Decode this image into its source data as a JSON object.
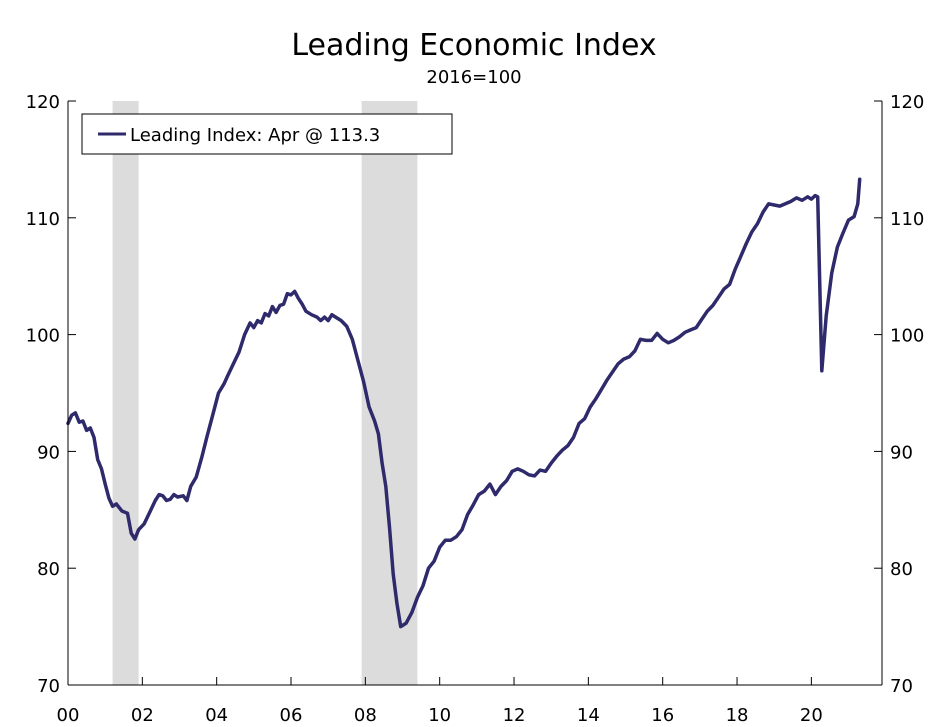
{
  "chart_data": {
    "type": "line",
    "title": "Leading Economic Index",
    "subtitle": "2016=100",
    "xlabel": "",
    "ylabel": "",
    "xlim": [
      2000.0,
      2021.9
    ],
    "ylim": [
      70,
      120
    ],
    "y_ticks": [
      70,
      80,
      90,
      100,
      110,
      120
    ],
    "x_tick_labels": [
      {
        "value": 2000,
        "label": "00"
      },
      {
        "value": 2002,
        "label": "02"
      },
      {
        "value": 2004,
        "label": "04"
      },
      {
        "value": 2006,
        "label": "06"
      },
      {
        "value": 2008,
        "label": "08"
      },
      {
        "value": 2010,
        "label": "10"
      },
      {
        "value": 2012,
        "label": "12"
      },
      {
        "value": 2014,
        "label": "14"
      },
      {
        "value": 2016,
        "label": "16"
      },
      {
        "value": 2018,
        "label": "18"
      },
      {
        "value": 2020,
        "label": "20"
      }
    ],
    "recessions": [
      {
        "start": 2001.2,
        "end": 2001.9
      },
      {
        "start": 2007.9,
        "end": 2009.4
      }
    ],
    "legend": {
      "position": "top-left",
      "entry": "Leading Index: Apr @ 113.3"
    },
    "grid": false,
    "series": [
      {
        "name": "Leading Index: Apr @ 113.3",
        "color": "#2e2a6b",
        "points": [
          [
            2000.0,
            92.4
          ],
          [
            2000.1,
            93.1
          ],
          [
            2000.2,
            93.3
          ],
          [
            2000.3,
            92.5
          ],
          [
            2000.4,
            92.6
          ],
          [
            2000.5,
            91.8
          ],
          [
            2000.6,
            92.0
          ],
          [
            2000.7,
            91.2
          ],
          [
            2000.8,
            89.3
          ],
          [
            2000.9,
            88.5
          ],
          [
            2001.0,
            87.2
          ],
          [
            2001.1,
            86.0
          ],
          [
            2001.2,
            85.3
          ],
          [
            2001.3,
            85.5
          ],
          [
            2001.45,
            84.9
          ],
          [
            2001.6,
            84.7
          ],
          [
            2001.7,
            83.0
          ],
          [
            2001.8,
            82.5
          ],
          [
            2001.9,
            83.3
          ],
          [
            2002.05,
            83.8
          ],
          [
            2002.2,
            84.8
          ],
          [
            2002.35,
            85.8
          ],
          [
            2002.45,
            86.3
          ],
          [
            2002.55,
            86.2
          ],
          [
            2002.65,
            85.8
          ],
          [
            2002.75,
            85.9
          ],
          [
            2002.85,
            86.3
          ],
          [
            2002.95,
            86.1
          ],
          [
            2003.1,
            86.2
          ],
          [
            2003.2,
            85.8
          ],
          [
            2003.3,
            87.0
          ],
          [
            2003.45,
            87.8
          ],
          [
            2003.6,
            89.5
          ],
          [
            2003.75,
            91.4
          ],
          [
            2003.9,
            93.2
          ],
          [
            2004.05,
            95.0
          ],
          [
            2004.2,
            95.8
          ],
          [
            2004.3,
            96.5
          ],
          [
            2004.45,
            97.5
          ],
          [
            2004.6,
            98.5
          ],
          [
            2004.75,
            100.0
          ],
          [
            2004.9,
            101.0
          ],
          [
            2005.0,
            100.6
          ],
          [
            2005.1,
            101.2
          ],
          [
            2005.2,
            101.0
          ],
          [
            2005.3,
            101.8
          ],
          [
            2005.4,
            101.6
          ],
          [
            2005.5,
            102.4
          ],
          [
            2005.6,
            101.9
          ],
          [
            2005.7,
            102.5
          ],
          [
            2005.8,
            102.6
          ],
          [
            2005.9,
            103.5
          ],
          [
            2006.0,
            103.4
          ],
          [
            2006.1,
            103.7
          ],
          [
            2006.2,
            103.1
          ],
          [
            2006.3,
            102.6
          ],
          [
            2006.4,
            102.0
          ],
          [
            2006.55,
            101.7
          ],
          [
            2006.7,
            101.5
          ],
          [
            2006.8,
            101.2
          ],
          [
            2006.9,
            101.5
          ],
          [
            2007.0,
            101.2
          ],
          [
            2007.1,
            101.7
          ],
          [
            2007.2,
            101.5
          ],
          [
            2007.35,
            101.2
          ],
          [
            2007.5,
            100.7
          ],
          [
            2007.65,
            99.6
          ],
          [
            2007.8,
            97.8
          ],
          [
            2007.95,
            96.0
          ],
          [
            2008.1,
            93.8
          ],
          [
            2008.25,
            92.6
          ],
          [
            2008.35,
            91.5
          ],
          [
            2008.45,
            89.0
          ],
          [
            2008.55,
            87.0
          ],
          [
            2008.65,
            83.5
          ],
          [
            2008.75,
            79.5
          ],
          [
            2008.85,
            77.0
          ],
          [
            2008.95,
            75.0
          ],
          [
            2009.1,
            75.3
          ],
          [
            2009.25,
            76.2
          ],
          [
            2009.4,
            77.5
          ],
          [
            2009.55,
            78.5
          ],
          [
            2009.7,
            80.0
          ],
          [
            2009.85,
            80.6
          ],
          [
            2010.0,
            81.8
          ],
          [
            2010.15,
            82.4
          ],
          [
            2010.3,
            82.4
          ],
          [
            2010.45,
            82.7
          ],
          [
            2010.6,
            83.3
          ],
          [
            2010.75,
            84.6
          ],
          [
            2010.9,
            85.4
          ],
          [
            2011.05,
            86.3
          ],
          [
            2011.2,
            86.6
          ],
          [
            2011.35,
            87.2
          ],
          [
            2011.5,
            86.3
          ],
          [
            2011.65,
            87.0
          ],
          [
            2011.8,
            87.5
          ],
          [
            2011.95,
            88.3
          ],
          [
            2012.1,
            88.5
          ],
          [
            2012.25,
            88.3
          ],
          [
            2012.4,
            88.0
          ],
          [
            2012.55,
            87.9
          ],
          [
            2012.7,
            88.4
          ],
          [
            2012.85,
            88.3
          ],
          [
            2013.0,
            89.0
          ],
          [
            2013.15,
            89.6
          ],
          [
            2013.3,
            90.1
          ],
          [
            2013.45,
            90.5
          ],
          [
            2013.6,
            91.2
          ],
          [
            2013.75,
            92.4
          ],
          [
            2013.9,
            92.8
          ],
          [
            2014.05,
            93.8
          ],
          [
            2014.2,
            94.5
          ],
          [
            2014.35,
            95.3
          ],
          [
            2014.5,
            96.1
          ],
          [
            2014.65,
            96.8
          ],
          [
            2014.8,
            97.5
          ],
          [
            2014.95,
            97.9
          ],
          [
            2015.1,
            98.1
          ],
          [
            2015.25,
            98.6
          ],
          [
            2015.4,
            99.6
          ],
          [
            2015.55,
            99.5
          ],
          [
            2015.7,
            99.5
          ],
          [
            2015.85,
            100.1
          ],
          [
            2016.0,
            99.6
          ],
          [
            2016.15,
            99.3
          ],
          [
            2016.3,
            99.5
          ],
          [
            2016.45,
            99.8
          ],
          [
            2016.6,
            100.2
          ],
          [
            2016.75,
            100.4
          ],
          [
            2016.9,
            100.6
          ],
          [
            2017.05,
            101.3
          ],
          [
            2017.2,
            102.0
          ],
          [
            2017.35,
            102.5
          ],
          [
            2017.5,
            103.2
          ],
          [
            2017.65,
            103.9
          ],
          [
            2017.8,
            104.3
          ],
          [
            2017.95,
            105.6
          ],
          [
            2018.1,
            106.7
          ],
          [
            2018.25,
            107.8
          ],
          [
            2018.4,
            108.8
          ],
          [
            2018.55,
            109.5
          ],
          [
            2018.7,
            110.5
          ],
          [
            2018.85,
            111.2
          ],
          [
            2019.0,
            111.1
          ],
          [
            2019.15,
            111.0
          ],
          [
            2019.3,
            111.2
          ],
          [
            2019.45,
            111.4
          ],
          [
            2019.6,
            111.7
          ],
          [
            2019.75,
            111.5
          ],
          [
            2019.9,
            111.8
          ],
          [
            2020.0,
            111.6
          ],
          [
            2020.1,
            111.9
          ],
          [
            2020.17,
            111.8
          ],
          [
            2020.28,
            96.9
          ],
          [
            2020.4,
            101.6
          ],
          [
            2020.55,
            105.3
          ],
          [
            2020.7,
            107.5
          ],
          [
            2020.85,
            108.7
          ],
          [
            2021.0,
            109.8
          ],
          [
            2021.15,
            110.1
          ],
          [
            2021.25,
            111.2
          ],
          [
            2021.3,
            113.3
          ]
        ]
      }
    ]
  },
  "colors": {
    "line": "#2e2a6b",
    "recession": "#dcdcdc",
    "axis": "#000000"
  }
}
